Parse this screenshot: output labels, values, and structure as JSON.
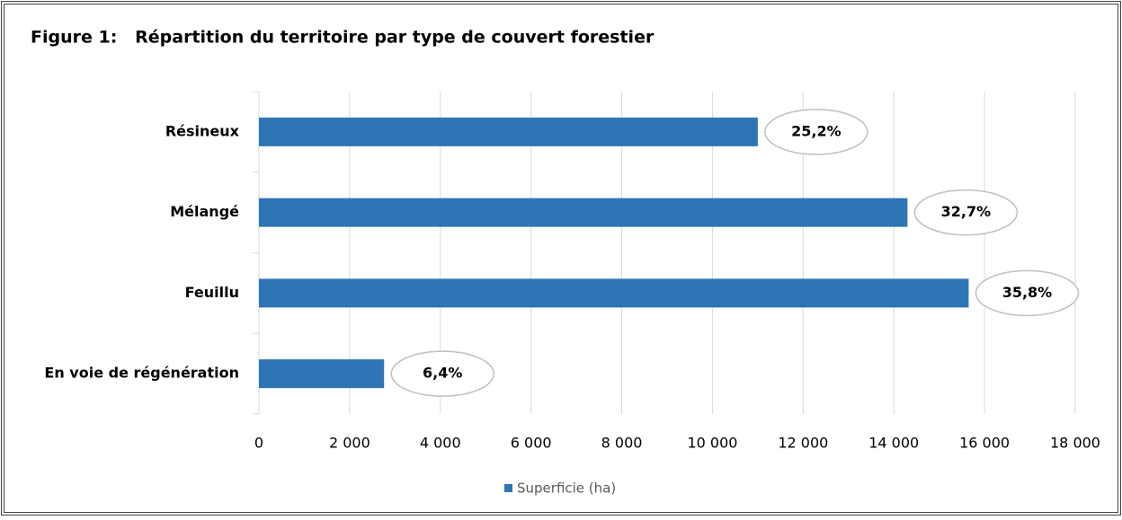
{
  "chart_data": {
    "type": "bar",
    "orientation": "horizontal",
    "title": "Figure 1:   Répartition du territoire par type de couvert forestier",
    "categories": [
      "Résineux",
      "Mélangé",
      "Feuillu",
      "En voie de régénération"
    ],
    "series": [
      {
        "name": "Superficie (ha)",
        "color": "#2e75b6",
        "values": [
          11000,
          14300,
          15650,
          2760
        ]
      }
    ],
    "annotations": [
      "25,2%",
      "32,7%",
      "35,8%",
      "6,4%"
    ],
    "xlim": [
      0,
      18000
    ],
    "xticks": [
      0,
      {
        "value": 2000,
        "label": "2 000"
      },
      {
        "value": 4000,
        "label": "4 000"
      },
      {
        "value": 6000,
        "label": "6 000"
      },
      {
        "value": 8000,
        "label": "8 000"
      },
      {
        "value": 10000,
        "label": "10 000"
      },
      {
        "value": 12000,
        "label": "12 000"
      },
      {
        "value": 14000,
        "label": "14 000"
      },
      {
        "value": 16000,
        "label": "16 000"
      },
      {
        "value": 18000,
        "label": "18 000"
      }
    ],
    "grid": true,
    "legend": "bottom"
  }
}
